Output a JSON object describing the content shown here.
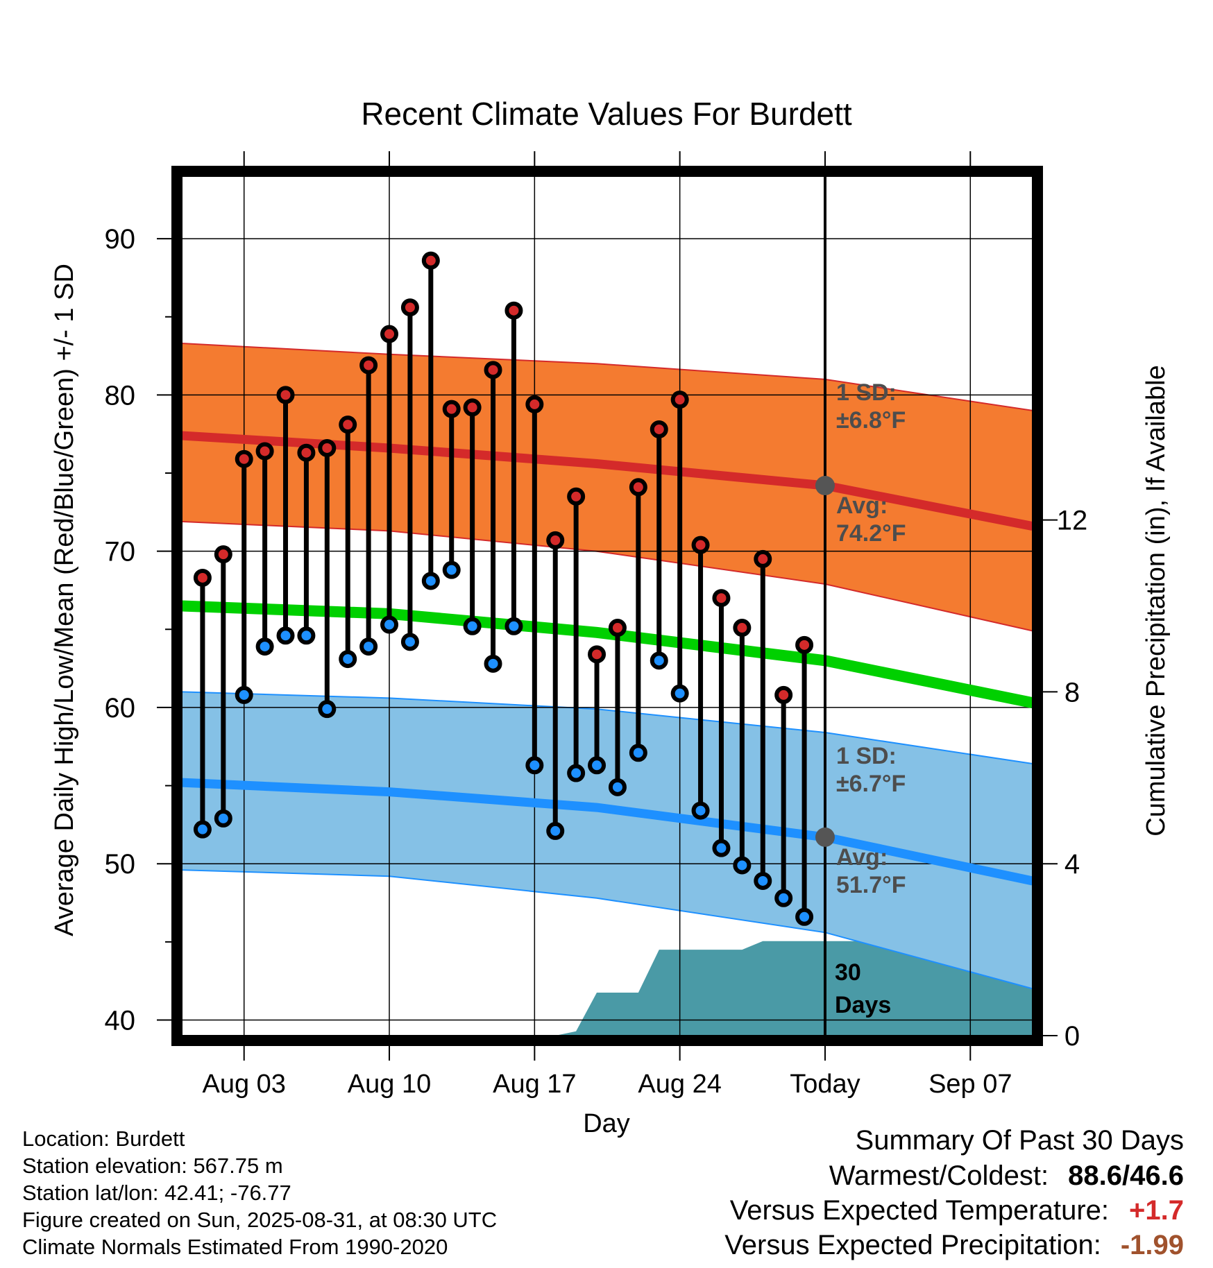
{
  "chart_data": {
    "type": "line",
    "title": "Recent Climate Values For Burdett",
    "xlabel": "Day",
    "ylabel": "Average Daily High/Low/Mean (Red/Blue/Green) +/- 1 SD",
    "y2label": "Cumulative Precipitation (in), If Available",
    "x_range": [
      "2025-07-31",
      "2025-09-10"
    ],
    "ylim": [
      39,
      94
    ],
    "y2lim": [
      0,
      20
    ],
    "x_ticks": [
      {
        "date": "2025-08-03",
        "label": "Aug 03"
      },
      {
        "date": "2025-08-10",
        "label": "Aug 10"
      },
      {
        "date": "2025-08-17",
        "label": "Aug 17"
      },
      {
        "date": "2025-08-24",
        "label": "Aug 24"
      },
      {
        "date": "2025-08-31",
        "label": "Today"
      },
      {
        "date": "2025-09-07",
        "label": "Sep 07"
      }
    ],
    "y_ticks": [
      40,
      50,
      60,
      70,
      80,
      90
    ],
    "y2_ticks": [
      0,
      4,
      8,
      12
    ],
    "today": "2025-08-31",
    "grid": true,
    "daily": [
      {
        "date": "2025-08-01",
        "high": 68.3,
        "low": 52.2
      },
      {
        "date": "2025-08-02",
        "high": 69.8,
        "low": 52.9
      },
      {
        "date": "2025-08-03",
        "high": 75.9,
        "low": 60.8
      },
      {
        "date": "2025-08-04",
        "high": 76.4,
        "low": 63.9
      },
      {
        "date": "2025-08-05",
        "high": 80.0,
        "low": 64.6
      },
      {
        "date": "2025-08-06",
        "high": 76.3,
        "low": 64.6
      },
      {
        "date": "2025-08-07",
        "high": 76.6,
        "low": 59.9
      },
      {
        "date": "2025-08-08",
        "high": 78.1,
        "low": 63.1
      },
      {
        "date": "2025-08-09",
        "high": 81.9,
        "low": 63.9
      },
      {
        "date": "2025-08-10",
        "high": 83.9,
        "low": 65.3
      },
      {
        "date": "2025-08-11",
        "high": 85.6,
        "low": 64.2
      },
      {
        "date": "2025-08-12",
        "high": 88.6,
        "low": 68.1
      },
      {
        "date": "2025-08-13",
        "high": 79.1,
        "low": 68.8
      },
      {
        "date": "2025-08-14",
        "high": 79.2,
        "low": 65.2
      },
      {
        "date": "2025-08-15",
        "high": 81.6,
        "low": 62.8
      },
      {
        "date": "2025-08-16",
        "high": 85.4,
        "low": 65.2
      },
      {
        "date": "2025-08-17",
        "high": 79.4,
        "low": 56.3
      },
      {
        "date": "2025-08-18",
        "high": 70.7,
        "low": 52.1
      },
      {
        "date": "2025-08-19",
        "high": 73.5,
        "low": 55.8
      },
      {
        "date": "2025-08-20",
        "high": 63.4,
        "low": 56.3
      },
      {
        "date": "2025-08-21",
        "high": 65.1,
        "low": 54.9
      },
      {
        "date": "2025-08-22",
        "high": 74.1,
        "low": 57.1
      },
      {
        "date": "2025-08-23",
        "high": 77.8,
        "low": 63.0
      },
      {
        "date": "2025-08-24",
        "high": 79.7,
        "low": 60.9
      },
      {
        "date": "2025-08-25",
        "high": 70.4,
        "low": 53.4
      },
      {
        "date": "2025-08-26",
        "high": 67.0,
        "low": 51.0
      },
      {
        "date": "2025-08-27",
        "high": 65.1,
        "low": 49.9
      },
      {
        "date": "2025-08-28",
        "high": 69.5,
        "low": 48.9
      },
      {
        "date": "2025-08-29",
        "high": 60.8,
        "low": 47.8
      },
      {
        "date": "2025-08-30",
        "high": 64.0,
        "low": 46.6
      }
    ],
    "normals": {
      "dates": [
        "2025-07-31",
        "2025-08-10",
        "2025-08-20",
        "2025-08-31",
        "2025-09-10"
      ],
      "high_avg": [
        77.4,
        76.6,
        75.6,
        74.2,
        71.6
      ],
      "high_plus_sd": [
        83.3,
        82.6,
        82.0,
        81.0,
        79.0
      ],
      "high_minus_sd": [
        71.9,
        71.3,
        70.0,
        67.9,
        64.9
      ],
      "mean_avg": [
        66.5,
        66.0,
        64.8,
        63.0,
        60.3
      ],
      "low_avg": [
        55.2,
        54.6,
        53.6,
        51.7,
        48.9
      ],
      "low_plus_sd": [
        61.0,
        60.6,
        59.9,
        58.4,
        56.4
      ],
      "low_minus_sd": [
        49.6,
        49.2,
        47.8,
        45.6,
        42.0
      ]
    },
    "precipitation": {
      "dates": [
        "2025-07-31",
        "2025-08-18",
        "2025-08-19",
        "2025-08-20",
        "2025-08-22",
        "2025-08-23",
        "2025-08-27",
        "2025-08-28",
        "2025-09-10"
      ],
      "cumulative": [
        0,
        0,
        0.1,
        1.0,
        1.0,
        2.0,
        2.0,
        2.2,
        2.2
      ]
    },
    "annotations": {
      "high_sd_label": "1 SD:",
      "high_sd_value": "±6.8°F",
      "high_avg_label": "Avg:",
      "high_avg_value": "74.2°F",
      "low_sd_label": "1 SD:",
      "low_sd_value": "±6.7°F",
      "low_avg_label": "Avg:",
      "low_avg_value": "51.7°F",
      "precip_period_line1": "30",
      "precip_period_line2": "Days"
    },
    "colors": {
      "high_band": "#f47b30",
      "high_line": "#d42a2a",
      "low_band": "#85c1e6",
      "low_line": "#1e90ff",
      "mean_line": "#00d000",
      "precip": "#4a9aa6",
      "high_dot": "#d42a2a",
      "low_dot": "#1e90ff",
      "annotation": "#4d4d4d"
    }
  },
  "footer": {
    "location": "Location: Burdett",
    "elevation": "Station elevation: 567.75 m",
    "latlon": "Station lat/lon: 42.41; -76.77",
    "created": "Figure created on Sun, 2025-08-31, at 08:30 UTC",
    "normals": "Climate Normals Estimated From 1990-2020"
  },
  "summary": {
    "title": "Summary Of Past 30 Days",
    "warmest_coldest_label": "Warmest/Coldest:",
    "warmest_value": "88.6",
    "separator": "/",
    "coldest_value": "46.6",
    "temp_label": "Versus Expected Temperature:",
    "temp_value": "+1.7",
    "precip_label": "Versus Expected Precipitation:",
    "precip_value": "-1.99"
  }
}
